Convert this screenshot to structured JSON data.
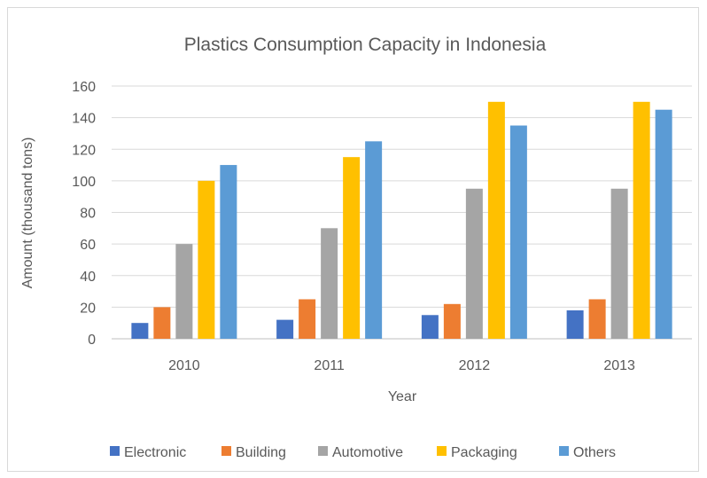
{
  "chart_data": {
    "type": "bar",
    "title": "Plastics Consumption Capacity in Indonesia",
    "xlabel": "Year",
    "ylabel": "Amount (thousand tons)",
    "ylim": [
      0,
      160
    ],
    "yticks": [
      0,
      20,
      40,
      60,
      80,
      100,
      120,
      140,
      160
    ],
    "grid": true,
    "legend_position": "bottom",
    "categories": [
      "2010",
      "2011",
      "2012",
      "2013"
    ],
    "series": [
      {
        "name": "Electronic",
        "color": "#4472C4",
        "values": [
          10,
          12,
          15,
          18
        ]
      },
      {
        "name": "Building",
        "color": "#ED7D31",
        "values": [
          20,
          25,
          22,
          25
        ]
      },
      {
        "name": "Automotive",
        "color": "#A5A5A5",
        "values": [
          60,
          70,
          95,
          95
        ]
      },
      {
        "name": "Packaging",
        "color": "#FFC000",
        "values": [
          100,
          115,
          150,
          150
        ]
      },
      {
        "name": "Others",
        "color": "#5B9BD5",
        "values": [
          110,
          125,
          135,
          145
        ]
      }
    ]
  }
}
